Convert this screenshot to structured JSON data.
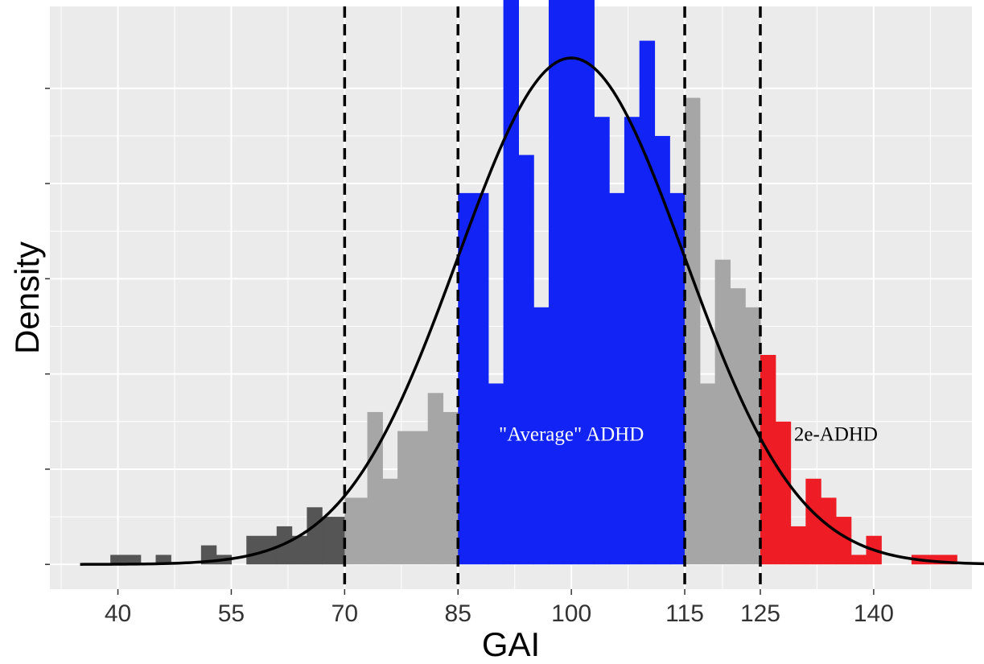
{
  "chart_data": {
    "type": "bar",
    "xlabel": "GAI",
    "ylabel": "Density",
    "xlim": [
      31,
      153
    ],
    "ylim": [
      -0.0013,
      0.0293
    ],
    "x_ticks": [
      40,
      55,
      70,
      85,
      100,
      115,
      125,
      140
    ],
    "y_ticks_labeled": false,
    "grid": true,
    "bin_width": 2,
    "bins": [
      {
        "x0": 39,
        "x1": 43,
        "density": 0.0005,
        "group": "low"
      },
      {
        "x0": 45,
        "x1": 47,
        "density": 0.0005,
        "group": "low"
      },
      {
        "x0": 51,
        "x1": 53,
        "density": 0.001,
        "group": "low"
      },
      {
        "x0": 53,
        "x1": 55,
        "density": 0.0005,
        "group": "low"
      },
      {
        "x0": 57,
        "x1": 61,
        "density": 0.0015,
        "group": "low"
      },
      {
        "x0": 61,
        "x1": 63,
        "density": 0.002,
        "group": "low"
      },
      {
        "x0": 63,
        "x1": 65,
        "density": 0.0015,
        "group": "low"
      },
      {
        "x0": 65,
        "x1": 67,
        "density": 0.003,
        "group": "low"
      },
      {
        "x0": 67,
        "x1": 70,
        "density": 0.0025,
        "group": "low"
      },
      {
        "x0": 70,
        "x1": 71,
        "density": 0.0035,
        "group": "below_average"
      },
      {
        "x0": 71,
        "x1": 73,
        "density": 0.0035,
        "group": "below_average"
      },
      {
        "x0": 73,
        "x1": 75,
        "density": 0.008,
        "group": "below_average"
      },
      {
        "x0": 75,
        "x1": 77,
        "density": 0.0045,
        "group": "below_average"
      },
      {
        "x0": 77,
        "x1": 81,
        "density": 0.007,
        "group": "below_average"
      },
      {
        "x0": 81,
        "x1": 83,
        "density": 0.009,
        "group": "below_average"
      },
      {
        "x0": 83,
        "x1": 85,
        "density": 0.008,
        "group": "below_average"
      },
      {
        "x0": 85,
        "x1": 89,
        "density": 0.0195,
        "group": "average"
      },
      {
        "x0": 89,
        "x1": 91,
        "density": 0.0095,
        "group": "average"
      },
      {
        "x0": 91,
        "x1": 93,
        "density": 0.0305,
        "group": "average"
      },
      {
        "x0": 93,
        "x1": 95,
        "density": 0.0215,
        "group": "average"
      },
      {
        "x0": 95,
        "x1": 97,
        "density": 0.0135,
        "group": "average"
      },
      {
        "x0": 97,
        "x1": 99,
        "density": 0.0305,
        "group": "average"
      },
      {
        "x0": 99,
        "x1": 101,
        "density": 0.03,
        "group": "average"
      },
      {
        "x0": 101,
        "x1": 103,
        "density": 0.0315,
        "group": "average"
      },
      {
        "x0": 103,
        "x1": 105,
        "density": 0.0235,
        "group": "average"
      },
      {
        "x0": 105,
        "x1": 107,
        "density": 0.0195,
        "group": "average"
      },
      {
        "x0": 107,
        "x1": 109,
        "density": 0.0235,
        "group": "average"
      },
      {
        "x0": 109,
        "x1": 111,
        "density": 0.0275,
        "group": "average"
      },
      {
        "x0": 111,
        "x1": 113,
        "density": 0.0225,
        "group": "average"
      },
      {
        "x0": 113,
        "x1": 115,
        "density": 0.0195,
        "group": "average"
      },
      {
        "x0": 115,
        "x1": 117,
        "density": 0.0245,
        "group": "above_average"
      },
      {
        "x0": 117,
        "x1": 119,
        "density": 0.0095,
        "group": "above_average"
      },
      {
        "x0": 119,
        "x1": 121,
        "density": 0.016,
        "group": "above_average"
      },
      {
        "x0": 121,
        "x1": 123,
        "density": 0.0145,
        "group": "above_average"
      },
      {
        "x0": 123,
        "x1": 125,
        "density": 0.0135,
        "group": "above_average"
      },
      {
        "x0": 125,
        "x1": 127,
        "density": 0.011,
        "group": "2e"
      },
      {
        "x0": 127,
        "x1": 129,
        "density": 0.0075,
        "group": "2e"
      },
      {
        "x0": 129,
        "x1": 131,
        "density": 0.002,
        "group": "2e"
      },
      {
        "x0": 131,
        "x1": 133,
        "density": 0.0045,
        "group": "2e"
      },
      {
        "x0": 133,
        "x1": 135,
        "density": 0.0035,
        "group": "2e"
      },
      {
        "x0": 135,
        "x1": 137,
        "density": 0.0025,
        "group": "2e"
      },
      {
        "x0": 137,
        "x1": 139,
        "density": 0.0005,
        "group": "2e"
      },
      {
        "x0": 139,
        "x1": 141,
        "density": 0.0015,
        "group": "2e"
      },
      {
        "x0": 145,
        "x1": 151,
        "density": 0.0005,
        "group": "2e"
      }
    ],
    "group_colors": {
      "low": "#555555",
      "below_average": "#a6a6a6",
      "average": "#1124f5",
      "above_average": "#a6a6a6",
      "2e": "#ee1c24"
    },
    "normal_curve": {
      "mean": 100,
      "sd": 15,
      "x_range": [
        35,
        155
      ]
    },
    "cutoffs": [
      70,
      85,
      115,
      125
    ],
    "annotations": [
      {
        "text": "\"Average\" ADHD",
        "x": 100,
        "y": 0.0065,
        "color": "#ffffff"
      },
      {
        "text": "2e-ADHD",
        "x": 135,
        "y": 0.0065,
        "color": "#000000"
      }
    ],
    "colors": {
      "panel_background": "#ebebeb",
      "grid_major": "#ffffff",
      "curve": "#000000",
      "cutoff_line": "#000000"
    }
  }
}
